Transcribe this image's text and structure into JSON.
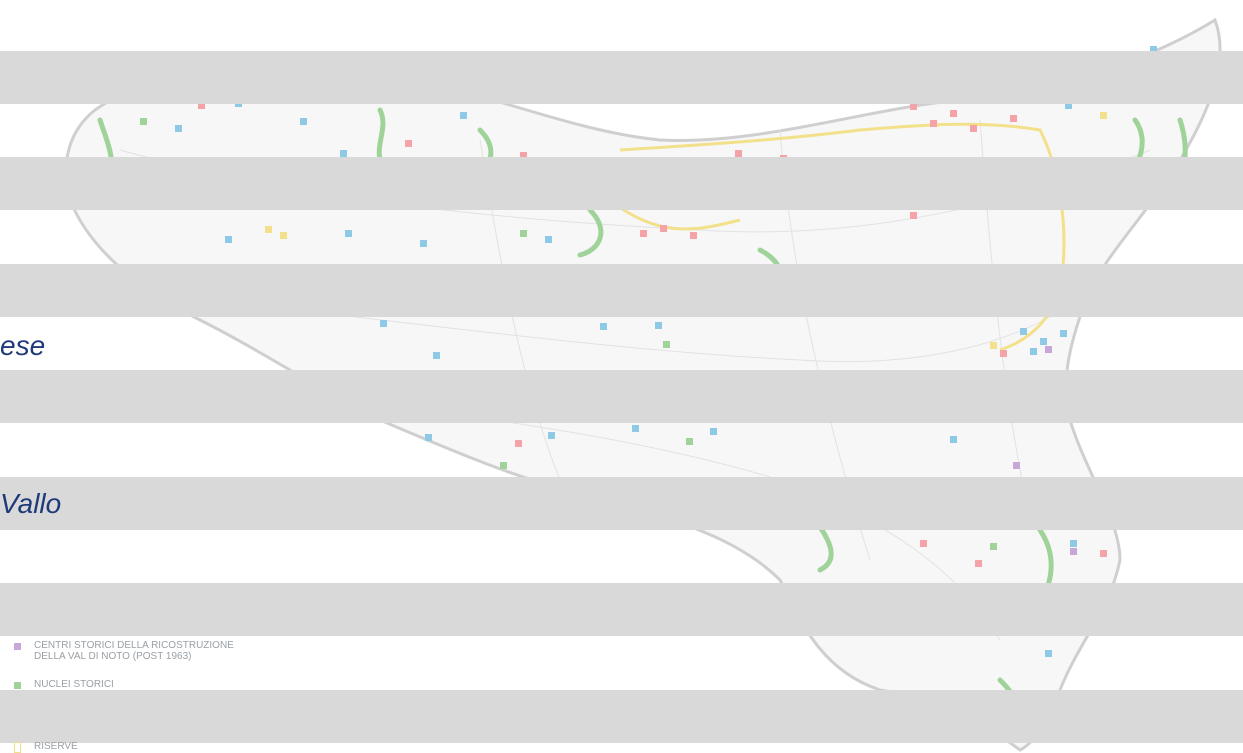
{
  "labels": {
    "upper_fragment": "ese",
    "lower_fragment": "Vallo"
  },
  "legend": {
    "item_ricostruzione_line1": "CENTRI STORICI DELLA RICOSTRUZIONE",
    "item_ricostruzione_line2": "DELLA VAL DI NOTO  (POST 1963)",
    "item_nuclei": "NUCLEI STORICI",
    "item_riserve": "RISERVE"
  },
  "colors": {
    "bar": "#d9d9d9",
    "label_text": "#1f3a7a",
    "marker_blue": "#8ecae6",
    "marker_red": "#f4a3a8",
    "marker_green": "#9fd39a",
    "marker_yellow": "#f3e08a",
    "marker_purple": "#c8a6d8",
    "land_outline": "#c9c9c9"
  }
}
